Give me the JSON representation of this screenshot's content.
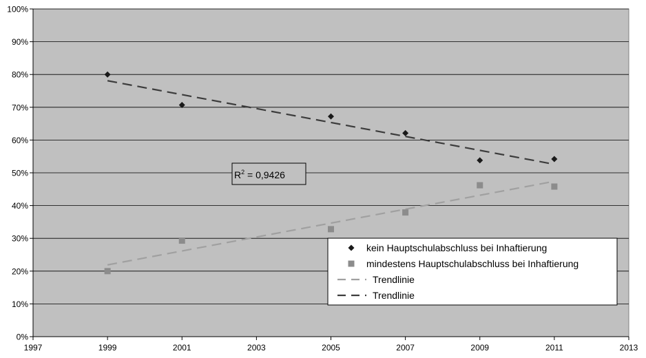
{
  "chart_data": {
    "type": "scatter",
    "x_axis": {
      "min": 1997,
      "max": 2013,
      "step": 2,
      "ticks": [
        "1997",
        "1999",
        "2001",
        "2003",
        "2005",
        "2007",
        "2009",
        "2011",
        "2013"
      ]
    },
    "y_axis": {
      "min": 0,
      "max": 100,
      "step": 10,
      "ticks": [
        "0%",
        "10%",
        "20%",
        "30%",
        "40%",
        "50%",
        "60%",
        "70%",
        "80%",
        "90%",
        "100%"
      ]
    },
    "grid": "horizontal",
    "plot_background": "#c0c0c0",
    "series": [
      {
        "name": "kein Hauptschulabschluss bei Inhaftierung",
        "marker": "diamond",
        "color": "#1a1a1a",
        "x": [
          1999,
          2001,
          2005,
          2007,
          2009,
          2011
        ],
        "y": [
          80.0,
          70.7,
          67.2,
          62.1,
          53.8,
          54.2
        ]
      },
      {
        "name": "mindestens Hauptschulabschluss bei Inhaftierung",
        "marker": "square",
        "color": "#8c8c8c",
        "x": [
          1999,
          2001,
          2005,
          2007,
          2009,
          2011
        ],
        "y": [
          20.0,
          29.3,
          32.8,
          37.9,
          46.2,
          45.8
        ]
      }
    ],
    "trendlines": [
      {
        "name": "Trendlinie",
        "for_series": 1,
        "color": "#a0a0a0",
        "x": [
          1999,
          2011
        ],
        "y": [
          21.9,
          47.4
        ]
      },
      {
        "name": "Trendlinie",
        "for_series": 0,
        "color": "#3c3c3c",
        "x": [
          1999,
          2011
        ],
        "y": [
          78.1,
          52.6
        ]
      }
    ],
    "annotation": {
      "label": "R",
      "superscript": "2",
      "value": " = 0,9426"
    },
    "legend": [
      {
        "label": "kein Hauptschulabschluss bei Inhaftierung",
        "kind": "diamond",
        "color": "#1a1a1a"
      },
      {
        "label": "mindestens Hauptschulabschluss bei Inhaftierung",
        "kind": "square",
        "color": "#8c8c8c"
      },
      {
        "label": "Trendlinie",
        "kind": "dash",
        "color": "#a0a0a0"
      },
      {
        "label": "Trendlinie",
        "kind": "dash",
        "color": "#3c3c3c"
      }
    ],
    "legend_position": "bottom-right"
  }
}
